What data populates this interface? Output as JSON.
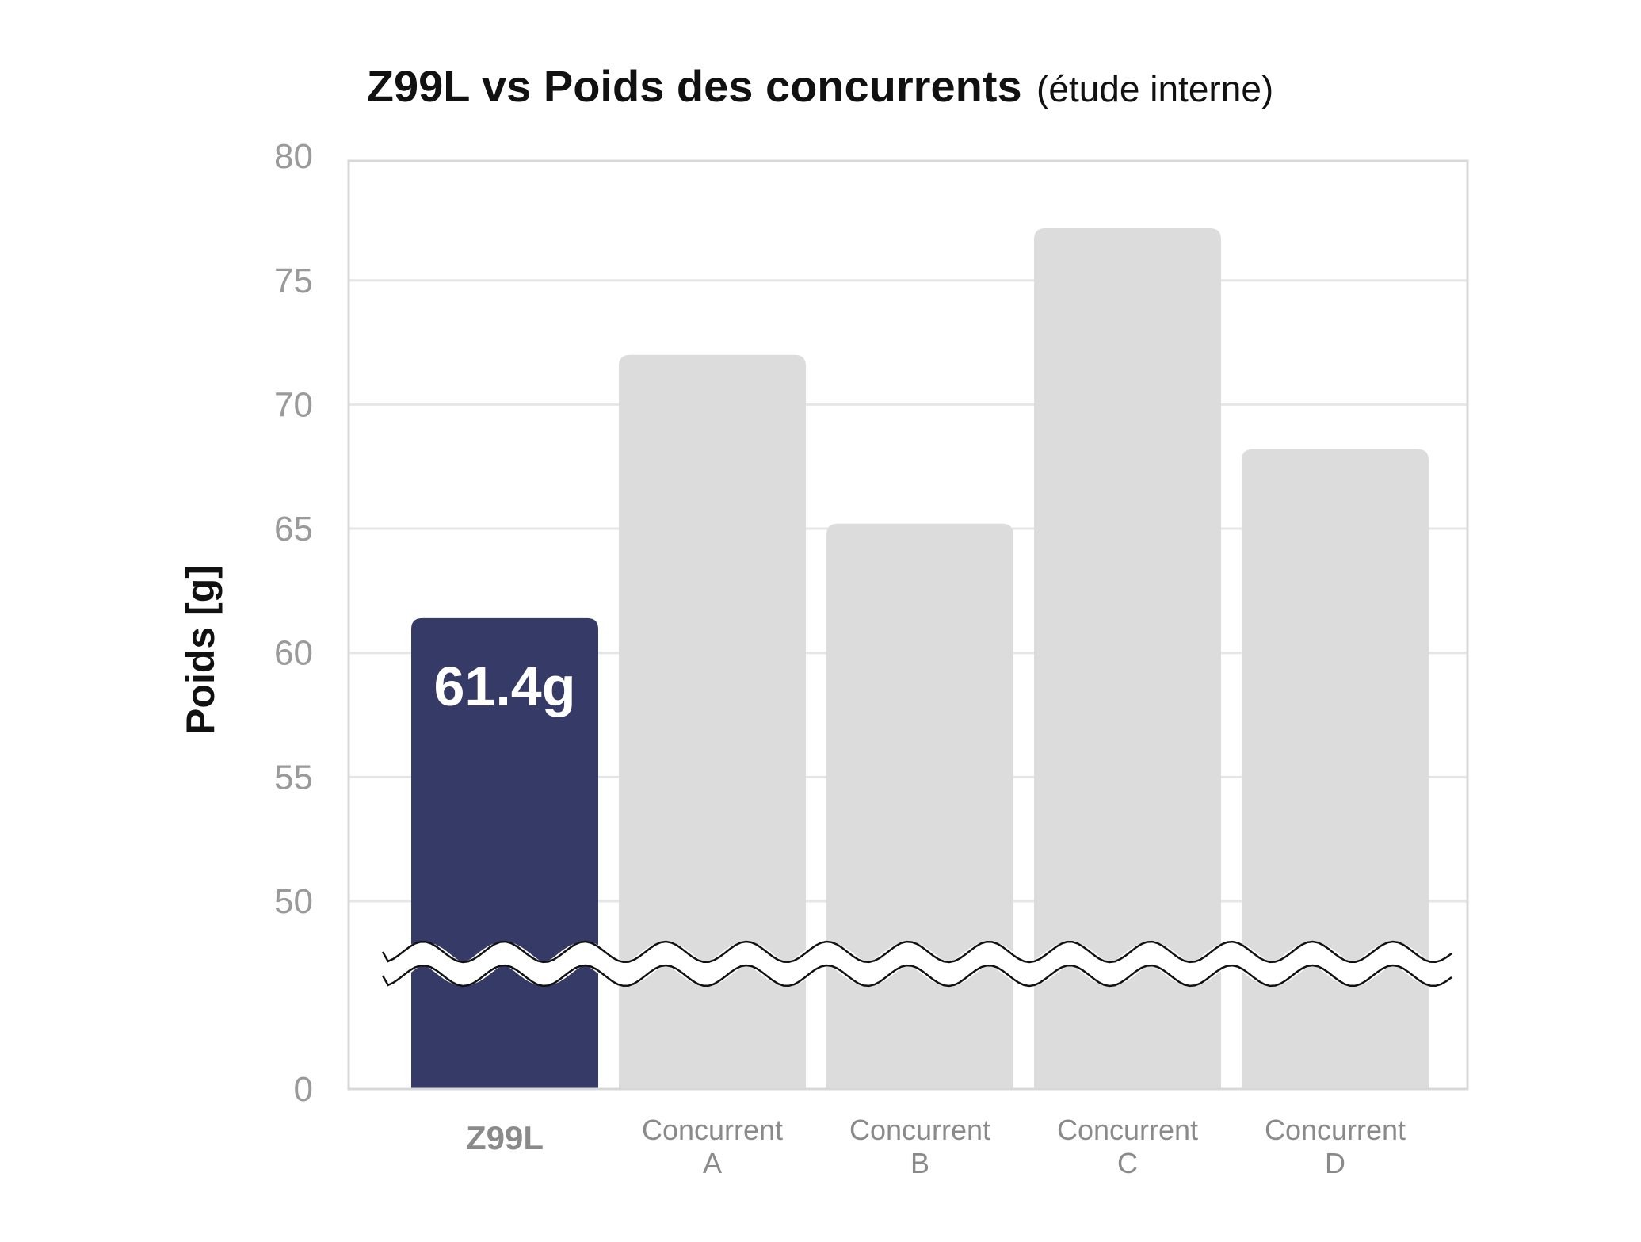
{
  "chart_data": {
    "type": "bar",
    "title": "Z99L vs Poids des concurrents",
    "subtitle": "(étude interne)",
    "ylabel": "Poids [g]",
    "xlabel": "",
    "categories": [
      [
        "Z99L"
      ],
      [
        "Concurrent",
        "A"
      ],
      [
        "Concurrent",
        "B"
      ],
      [
        "Concurrent",
        "C"
      ],
      [
        "Concurrent",
        "D"
      ]
    ],
    "values": [
      61.4,
      72,
      65.2,
      77.1,
      68.2
    ],
    "data_labels": [
      "61.4g",
      "",
      "",
      "",
      ""
    ],
    "highlight_index": 0,
    "y_ticks": [
      0,
      50,
      55,
      60,
      65,
      70,
      75,
      80
    ],
    "ylim": [
      0,
      80
    ],
    "axis_break": "between 0 and 50",
    "grid": true,
    "colors": {
      "highlight": "#363a66",
      "other": "#dcdcdc",
      "grid": "#e6e6e6",
      "frame": "#d8d8d8",
      "tick_text": "#9a9a9a"
    }
  }
}
